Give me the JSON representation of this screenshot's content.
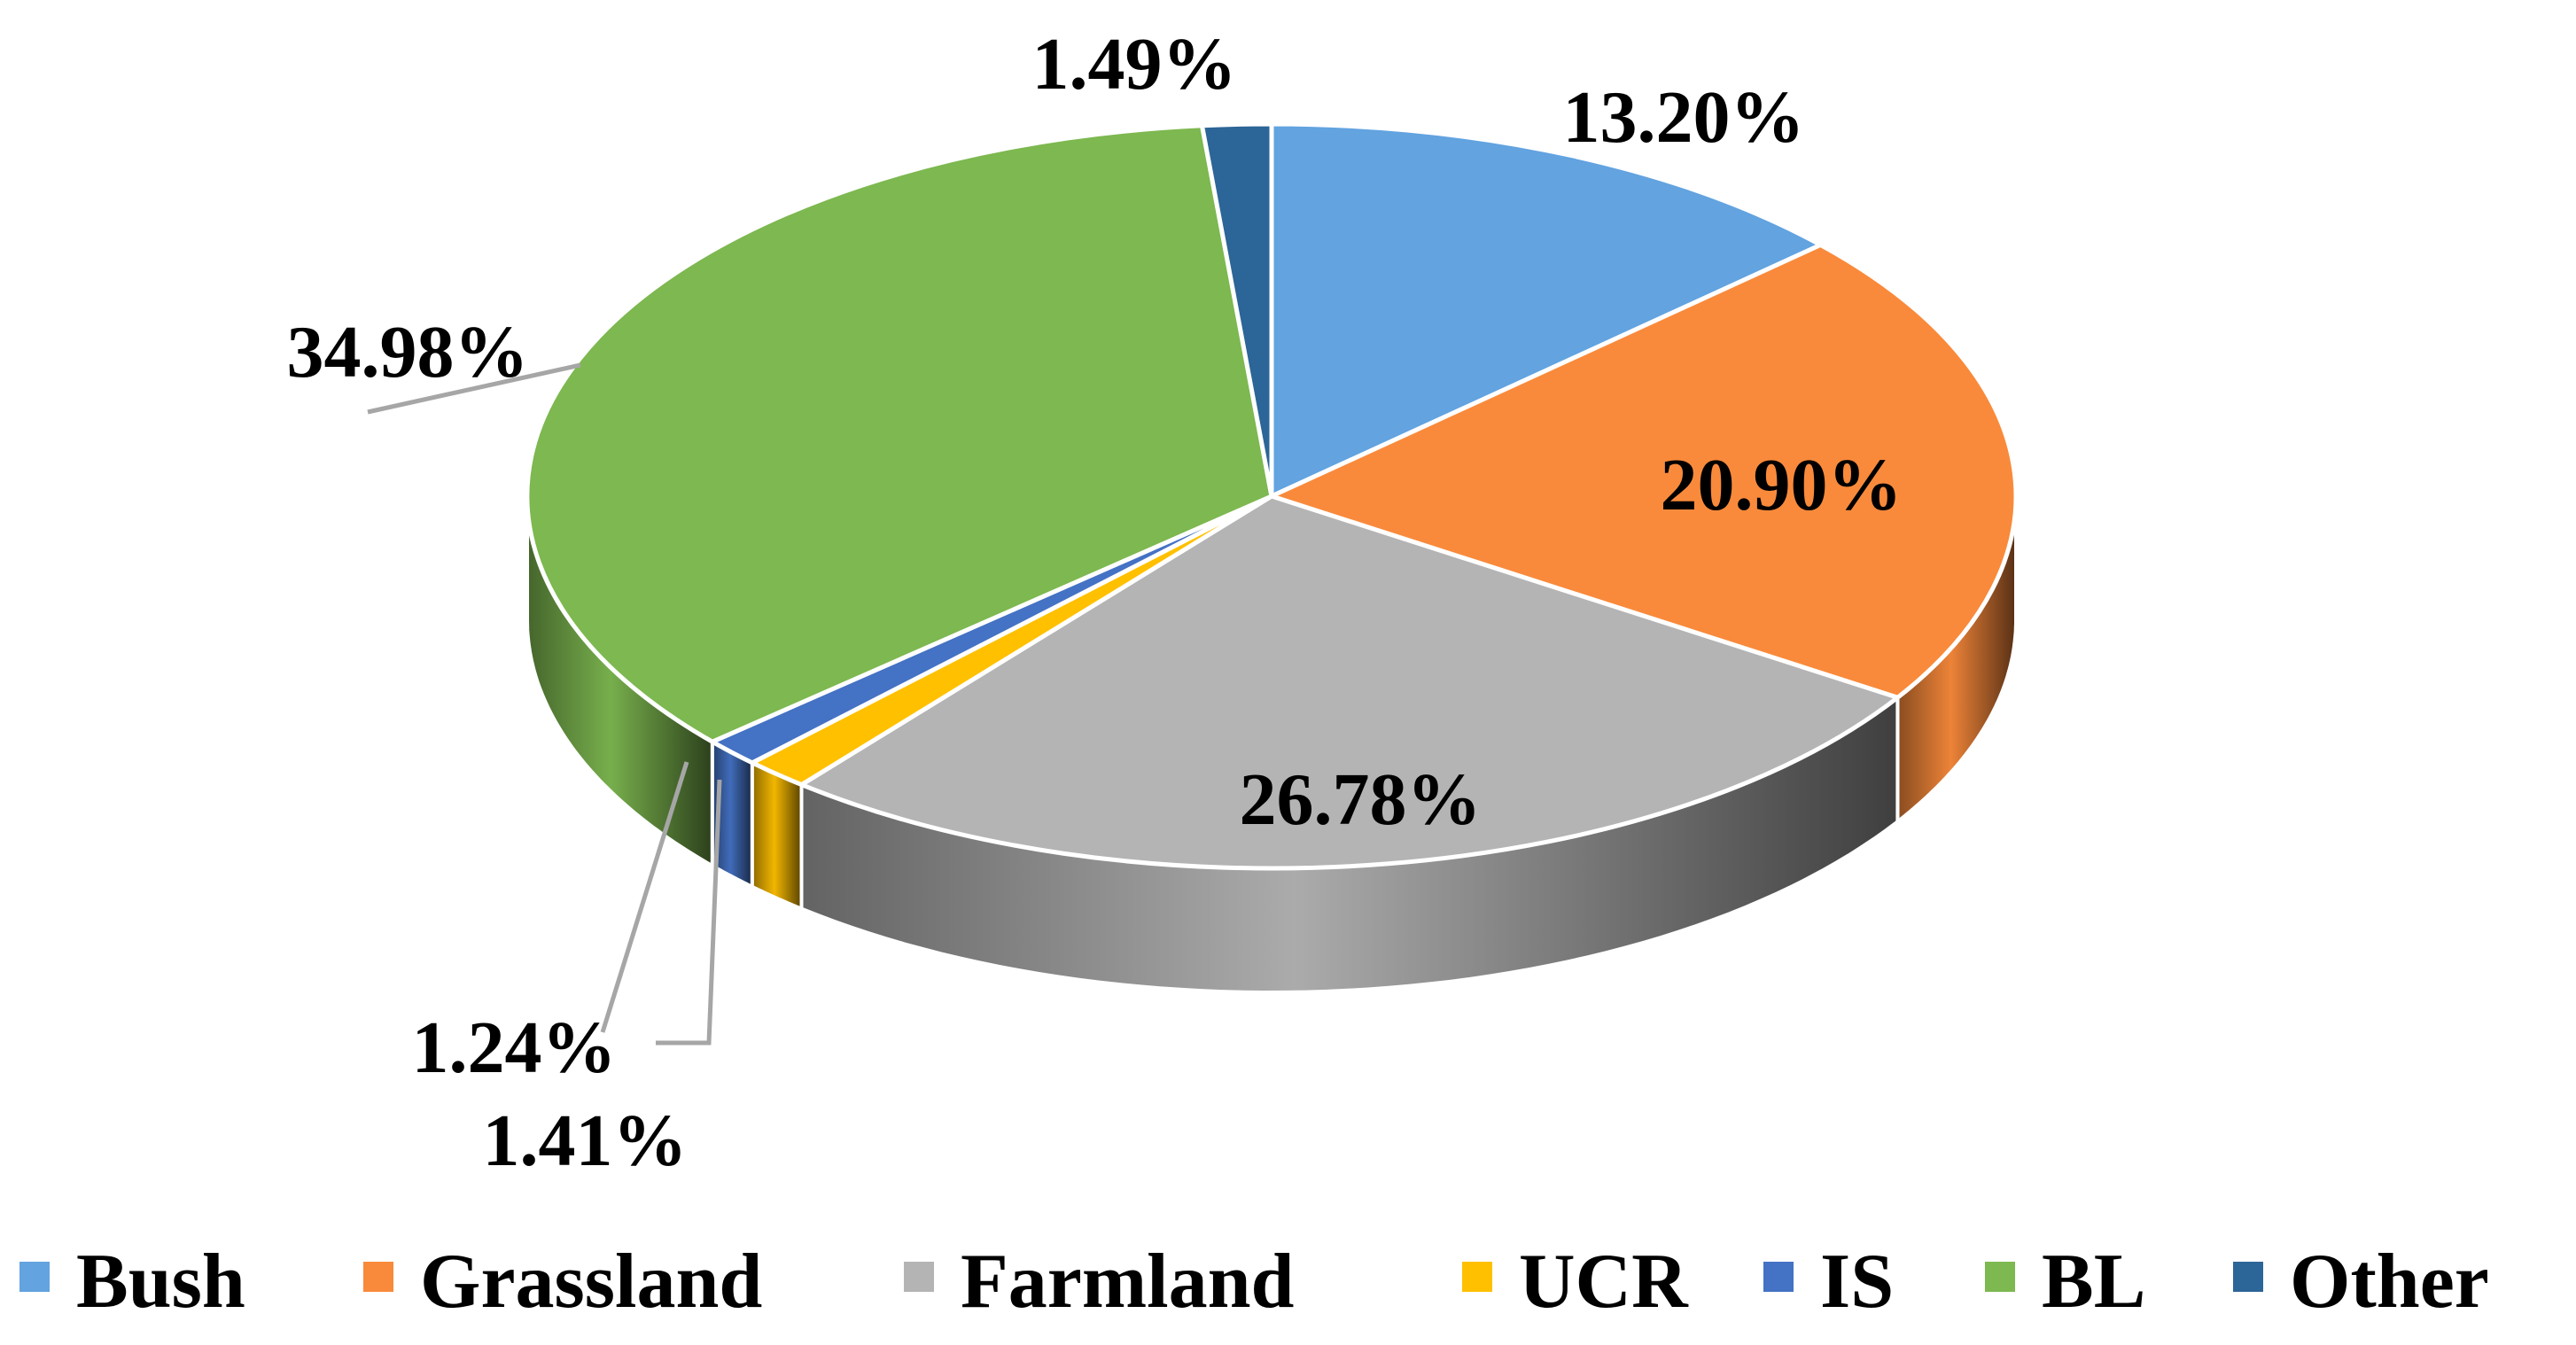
{
  "chart_data": {
    "type": "pie",
    "style": "3d",
    "legend_position": "bottom",
    "title": "",
    "slices": [
      {
        "name": "Bush",
        "value": 13.2,
        "label": "13.20%",
        "color": "#62A3E0"
      },
      {
        "name": "Grassland",
        "value": 20.9,
        "label": "20.90%",
        "color": "#F98A3B"
      },
      {
        "name": "Farmland",
        "value": 26.78,
        "label": "26.78%",
        "color": "#B4B4B4"
      },
      {
        "name": "UCR",
        "value": 1.41,
        "label": "1.41%",
        "color": "#FFC000"
      },
      {
        "name": "IS",
        "value": 1.24,
        "label": "1.24%",
        "color": "#4472C4"
      },
      {
        "name": "BL",
        "value": 34.98,
        "label": "34.98%",
        "color": "#7DB850"
      },
      {
        "name": "Other",
        "value": 1.49,
        "label": "1.49%",
        "color": "#2C6597"
      }
    ]
  }
}
